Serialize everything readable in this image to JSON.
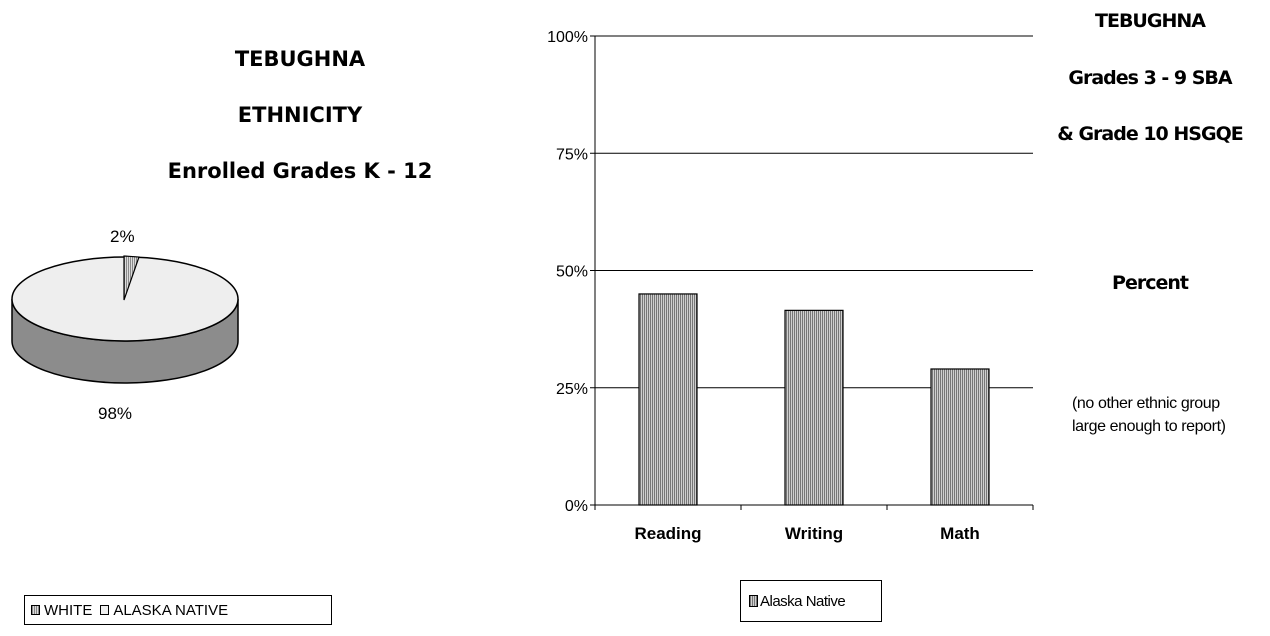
{
  "pie": {
    "title_lines": [
      "TEBUGHNA",
      "ETHNICITY",
      "Enrolled Grades K - 12"
    ],
    "labels": {
      "white": "2%",
      "alaska_native": "98%"
    },
    "legend": [
      "WHITE",
      "ALASKA NATIVE"
    ]
  },
  "bar": {
    "title_lines": [
      "TEBUGHNA",
      "Grades 3 - 9  SBA",
      "& Grade 10 HSGQE"
    ],
    "subtitle": "Percent",
    "note": "(no other ethnic group large enough to report)",
    "legend": [
      "Alaska Native"
    ]
  },
  "chart_data": [
    {
      "type": "pie",
      "title": "TEBUGHNA ETHNICITY Enrolled Grades K - 12",
      "categories": [
        "WHITE",
        "ALASKA NATIVE"
      ],
      "values": [
        2,
        98
      ],
      "value_labels": [
        "2%",
        "98%"
      ],
      "style": "3d",
      "legend_position": "bottom"
    },
    {
      "type": "bar",
      "title": "TEBUGHNA Grades 3 - 9  SBA & Grade 10 HSGQE",
      "ylabel": "Percent",
      "categories": [
        "Reading",
        "Writing",
        "Math"
      ],
      "series": [
        {
          "name": "Alaska Native",
          "values": [
            45,
            41.5,
            29
          ]
        }
      ],
      "ylim": [
        0,
        100
      ],
      "yticks": [
        "0%",
        "25%",
        "50%",
        "75%",
        "100%"
      ],
      "grid": true,
      "legend_position": "bottom"
    }
  ]
}
